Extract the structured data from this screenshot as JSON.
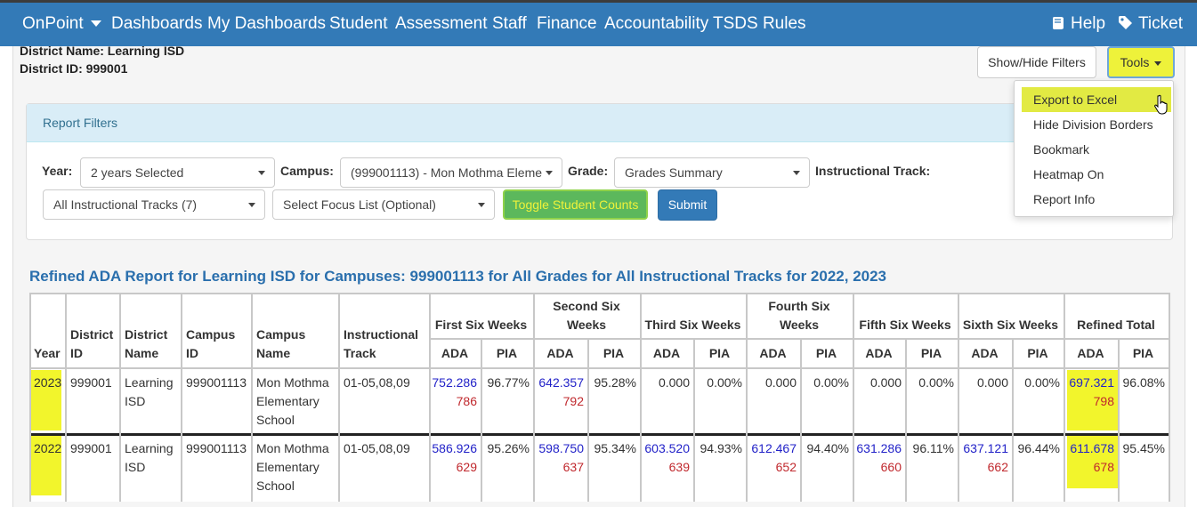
{
  "nav": {
    "brand": "OnPoint",
    "items": [
      "Dashboards",
      "My Dashboards",
      "Student",
      "Assessment",
      "Staff",
      "Finance",
      "Accountability",
      "TSDS Rules"
    ],
    "help": "Help",
    "ticket": "Ticket"
  },
  "district": {
    "name_line": "District Name: Learning ISD",
    "id_line": "District ID: 999001"
  },
  "toolbar": {
    "show_hide_filters": "Show/Hide Filters",
    "tools": "Tools"
  },
  "tools_menu": [
    "Export to Excel",
    "Hide Division Borders",
    "Bookmark",
    "Heatmap On",
    "Report Info"
  ],
  "filters": {
    "panel_title": "Report Filters",
    "year_label": "Year:",
    "year_value": "2 years Selected",
    "campus_label": "Campus:",
    "campus_value": "(999001113) - Mon Mothma Eleme",
    "grade_label": "Grade:",
    "grade_value": "Grades Summary",
    "track_label": "Instructional Track:",
    "track_value": "All Instructional Tracks (7)",
    "focus_value": "Select Focus List (Optional)",
    "toggle_label": "Toggle Student Counts",
    "submit_label": "Submit"
  },
  "report_title": "Refined ADA Report for Learning ISD for Campuses: 999001113 for All Grades for All Instructional Tracks for 2022, 2023",
  "table": {
    "headers": {
      "year": "Year",
      "district_id": [
        "District",
        "ID"
      ],
      "district_name": [
        "District",
        "Name"
      ],
      "campus_id": [
        "Campus",
        "ID"
      ],
      "campus_name": [
        "Campus",
        "Name"
      ],
      "track": [
        "Instructional",
        "Track"
      ],
      "periods": [
        [
          "First Six Weeks"
        ],
        [
          "Second Six",
          "Weeks"
        ],
        [
          "Third Six Weeks"
        ],
        [
          "Fourth Six",
          "Weeks"
        ],
        [
          "Fifth Six Weeks"
        ],
        [
          "Sixth Six Weeks"
        ],
        [
          "Refined Total"
        ]
      ],
      "ada": "ADA",
      "pia": "PIA"
    },
    "rows": [
      {
        "year": "2023",
        "district_id": "999001",
        "district_name": [
          "Learning",
          "ISD"
        ],
        "campus_id": "999001113",
        "campus_name": [
          "Mon Mothma",
          "Elementary",
          "School"
        ],
        "track": "01-05,08,09",
        "periods": [
          {
            "ada": "752.286",
            "count": "786",
            "pia": "96.77%"
          },
          {
            "ada": "642.357",
            "count": "792",
            "pia": "95.28%"
          },
          {
            "ada": "0.000",
            "count": "",
            "pia": "0.00%"
          },
          {
            "ada": "0.000",
            "count": "",
            "pia": "0.00%"
          },
          {
            "ada": "0.000",
            "count": "",
            "pia": "0.00%"
          },
          {
            "ada": "0.000",
            "count": "",
            "pia": "0.00%"
          },
          {
            "ada": "697.321",
            "count": "798",
            "pia": "96.08%"
          }
        ]
      },
      {
        "year": "2022",
        "district_id": "999001",
        "district_name": [
          "Learning",
          "ISD"
        ],
        "campus_id": "999001113",
        "campus_name": [
          "Mon Mothma",
          "Elementary",
          "School"
        ],
        "track": "01-05,08,09",
        "periods": [
          {
            "ada": "586.926",
            "count": "629",
            "pia": "95.26%"
          },
          {
            "ada": "598.750",
            "count": "637",
            "pia": "95.34%"
          },
          {
            "ada": "603.520",
            "count": "639",
            "pia": "94.93%"
          },
          {
            "ada": "612.467",
            "count": "652",
            "pia": "94.40%"
          },
          {
            "ada": "631.286",
            "count": "660",
            "pia": "96.11%"
          },
          {
            "ada": "637.121",
            "count": "662",
            "pia": "96.44%"
          },
          {
            "ada": "611.678",
            "count": "678",
            "pia": "95.45%"
          }
        ]
      }
    ]
  },
  "colors": {
    "nav_bg": "#337ab7",
    "highlight": "#f2f52c",
    "ada_value": "#2222c8",
    "count_value": "#c0282d",
    "title": "#2a6fad"
  }
}
